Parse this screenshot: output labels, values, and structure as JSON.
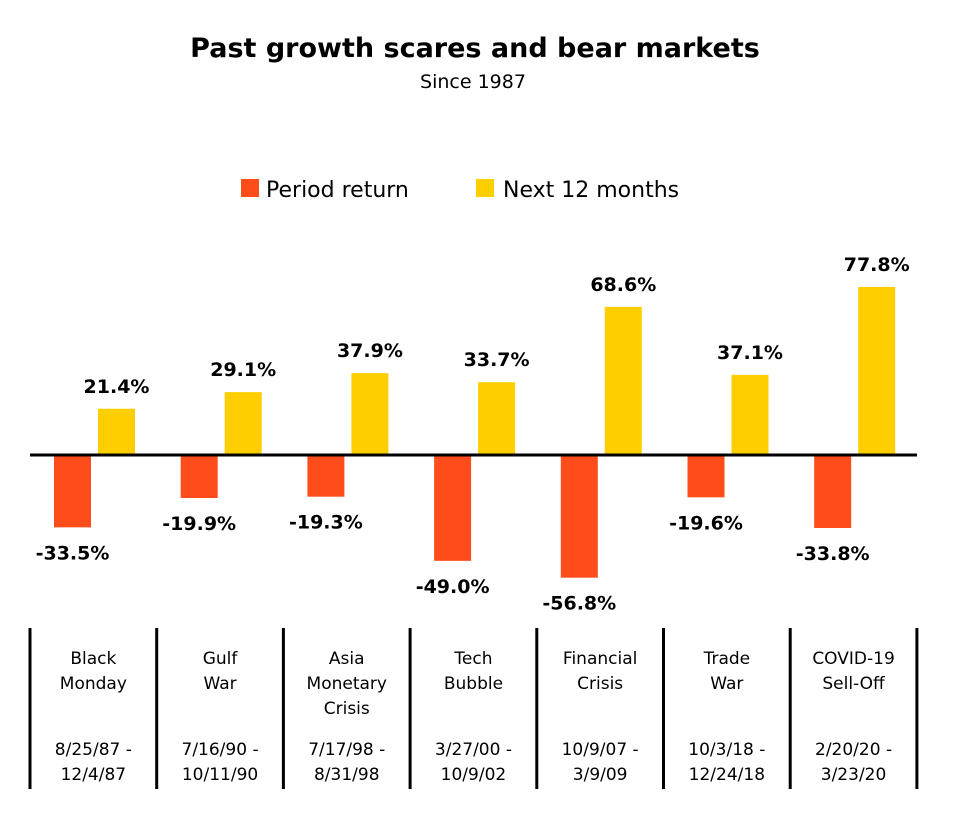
{
  "chart_data": {
    "type": "bar",
    "title": "Past growth scares and bear markets",
    "subtitle": "Since 1987",
    "xlabel": "",
    "ylabel": "",
    "ylim": [
      -60,
      80
    ],
    "grid": false,
    "legend_position": "top-center",
    "categories": [
      {
        "name_lines": [
          "Black",
          "Monday"
        ],
        "date_lines": [
          "8/25/87 -",
          "12/4/87"
        ]
      },
      {
        "name_lines": [
          "Gulf",
          "War"
        ],
        "date_lines": [
          "7/16/90 -",
          "10/11/90"
        ]
      },
      {
        "name_lines": [
          "Asia",
          "Monetary",
          "Crisis"
        ],
        "date_lines": [
          "7/17/98 -",
          "8/31/98"
        ]
      },
      {
        "name_lines": [
          "Tech",
          "Bubble"
        ],
        "date_lines": [
          "3/27/00 -",
          "10/9/02"
        ]
      },
      {
        "name_lines": [
          "Financial",
          "Crisis"
        ],
        "date_lines": [
          "10/9/07 -",
          "3/9/09"
        ]
      },
      {
        "name_lines": [
          "Trade",
          "War"
        ],
        "date_lines": [
          "10/3/18 -",
          "12/24/18"
        ]
      },
      {
        "name_lines": [
          "COVID-19",
          "Sell-Off"
        ],
        "date_lines": [
          "2/20/20 -",
          "3/23/20"
        ]
      }
    ],
    "series": [
      {
        "name": "Period return",
        "color": "#ff4c1b",
        "values": [
          -33.5,
          -19.9,
          -19.3,
          -49.0,
          -56.8,
          -19.6,
          -33.8
        ],
        "labels": [
          "-33.5%",
          "-19.9%",
          "-19.3%",
          "-49.0%",
          "-56.8%",
          "-19.6%",
          "-33.8%"
        ]
      },
      {
        "name": "Next 12 months",
        "color": "#ffce00",
        "values": [
          21.4,
          29.1,
          37.9,
          33.7,
          68.6,
          37.1,
          77.8
        ],
        "labels": [
          "21.4%",
          "29.1%",
          "37.9%",
          "33.7%",
          "68.6%",
          "37.1%",
          "77.8%"
        ]
      }
    ]
  }
}
